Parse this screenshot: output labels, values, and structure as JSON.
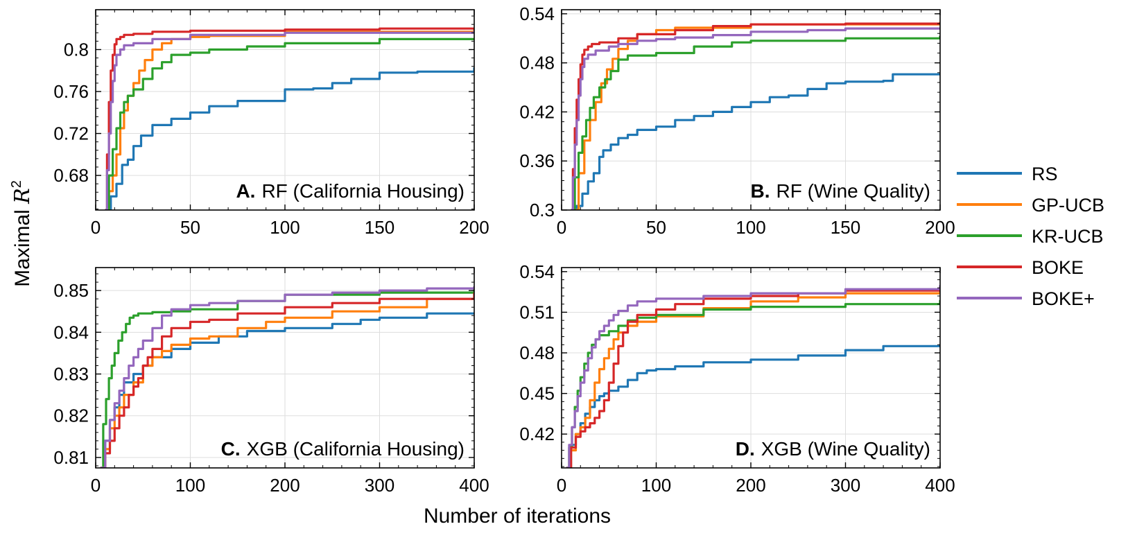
{
  "figure": {
    "ylabel_prefix": "Maximal ",
    "ylabel_var": "R",
    "ylabel_exp": "2",
    "xlabel": "Number of iterations"
  },
  "legend": [
    {
      "name": "RS",
      "color": "#1f77b4"
    },
    {
      "name": "GP-UCB",
      "color": "#ff7f0e"
    },
    {
      "name": "KR-UCB",
      "color": "#2ca02c"
    },
    {
      "name": "BOKE",
      "color": "#d62728"
    },
    {
      "name": "BOKE+",
      "color": "#9467bd"
    }
  ],
  "chart_data": [
    {
      "type": "line",
      "panel": "A",
      "letter": "A.",
      "title": "RF (California Housing)",
      "xlim": [
        0,
        200
      ],
      "ylim": [
        0.647,
        0.838
      ],
      "xticks": [
        0,
        50,
        100,
        150,
        200
      ],
      "xtick_labels": [
        "0",
        "50",
        "100",
        "150",
        "200"
      ],
      "yticks": [
        0.68,
        0.72,
        0.76,
        0.8
      ],
      "ytick_labels": [
        "0.68",
        "0.72",
        "0.76",
        "0.8"
      ],
      "grid": true,
      "series": [
        {
          "name": "RS",
          "color": "#1f77b4",
          "x": [
            5,
            8,
            11,
            14,
            17,
            20,
            24,
            30,
            40,
            50,
            60,
            75,
            100,
            115,
            125,
            135,
            150,
            170,
            200
          ],
          "y": [
            0.647,
            0.66,
            0.672,
            0.69,
            0.695,
            0.708,
            0.718,
            0.728,
            0.734,
            0.74,
            0.746,
            0.751,
            0.762,
            0.763,
            0.768,
            0.772,
            0.778,
            0.779,
            0.783
          ]
        },
        {
          "name": "GP-UCB",
          "color": "#ff7f0e",
          "x": [
            5,
            7,
            9,
            11,
            13,
            15,
            17,
            20,
            23,
            26,
            30,
            35,
            40,
            50,
            60,
            100,
            200
          ],
          "y": [
            0.647,
            0.665,
            0.68,
            0.7,
            0.725,
            0.742,
            0.756,
            0.768,
            0.78,
            0.79,
            0.8,
            0.806,
            0.81,
            0.812,
            0.813,
            0.817,
            0.821
          ]
        },
        {
          "name": "KR-UCB",
          "color": "#2ca02c",
          "x": [
            5,
            7,
            9,
            11,
            13,
            15,
            17,
            20,
            25,
            30,
            35,
            40,
            50,
            60,
            80,
            100,
            150,
            200
          ],
          "y": [
            0.647,
            0.68,
            0.705,
            0.725,
            0.74,
            0.75,
            0.756,
            0.762,
            0.772,
            0.782,
            0.788,
            0.795,
            0.797,
            0.8,
            0.803,
            0.806,
            0.81,
            0.811
          ]
        },
        {
          "name": "BOKE",
          "color": "#d62728",
          "x": [
            5,
            6,
            7,
            8,
            9,
            10,
            11,
            13,
            15,
            20,
            30,
            50,
            100,
            150,
            200
          ],
          "y": [
            0.647,
            0.7,
            0.75,
            0.78,
            0.795,
            0.805,
            0.81,
            0.812,
            0.814,
            0.815,
            0.817,
            0.818,
            0.819,
            0.82,
            0.82
          ]
        },
        {
          "name": "BOKE+",
          "color": "#9467bd",
          "x": [
            5,
            6,
            7,
            8,
            9,
            10,
            11,
            13,
            15,
            20,
            30,
            50,
            100,
            200
          ],
          "y": [
            0.647,
            0.685,
            0.72,
            0.75,
            0.77,
            0.785,
            0.795,
            0.8,
            0.804,
            0.806,
            0.81,
            0.814,
            0.816,
            0.818
          ]
        }
      ]
    },
    {
      "type": "line",
      "panel": "B",
      "letter": "B.",
      "title": "RF (Wine Quality)",
      "xlim": [
        0,
        200
      ],
      "ylim": [
        0.3,
        0.545
      ],
      "xticks": [
        0,
        50,
        100,
        150,
        200
      ],
      "xtick_labels": [
        "0",
        "50",
        "100",
        "150",
        "200"
      ],
      "yticks": [
        0.3,
        0.36,
        0.42,
        0.48,
        0.54
      ],
      "ytick_labels": [
        "0.3",
        "0.36",
        "0.42",
        "0.48",
        "0.54"
      ],
      "grid": true,
      "series": [
        {
          "name": "RS",
          "color": "#1f77b4",
          "x": [
            5,
            8,
            11,
            14,
            17,
            20,
            22,
            26,
            30,
            35,
            40,
            50,
            60,
            70,
            80,
            90,
            100,
            110,
            120,
            130,
            140,
            150,
            170,
            175,
            200
          ],
          "y": [
            0.3,
            0.305,
            0.32,
            0.335,
            0.345,
            0.365,
            0.373,
            0.38,
            0.388,
            0.392,
            0.398,
            0.402,
            0.41,
            0.415,
            0.42,
            0.426,
            0.432,
            0.438,
            0.44,
            0.448,
            0.455,
            0.457,
            0.458,
            0.466,
            0.466
          ]
        },
        {
          "name": "GP-UCB",
          "color": "#ff7f0e",
          "x": [
            6,
            9,
            12,
            15,
            18,
            21,
            24,
            27,
            30,
            35,
            40,
            50,
            60,
            100,
            200
          ],
          "y": [
            0.3,
            0.345,
            0.385,
            0.41,
            0.432,
            0.455,
            0.472,
            0.485,
            0.497,
            0.507,
            0.515,
            0.52,
            0.523,
            0.527,
            0.53
          ]
        },
        {
          "name": "KR-UCB",
          "color": "#2ca02c",
          "x": [
            5,
            7,
            9,
            11,
            13,
            15,
            17,
            20,
            23,
            26,
            30,
            35,
            50,
            70,
            90,
            100,
            150,
            200
          ],
          "y": [
            0.3,
            0.34,
            0.37,
            0.39,
            0.41,
            0.425,
            0.438,
            0.45,
            0.46,
            0.47,
            0.484,
            0.489,
            0.492,
            0.5,
            0.505,
            0.507,
            0.51,
            0.513
          ]
        },
        {
          "name": "BOKE",
          "color": "#d62728",
          "x": [
            5,
            6,
            7,
            8,
            9,
            10,
            11,
            12,
            14,
            16,
            20,
            30,
            40,
            60,
            80,
            100,
            150,
            200
          ],
          "y": [
            0.3,
            0.35,
            0.4,
            0.435,
            0.46,
            0.478,
            0.49,
            0.496,
            0.5,
            0.503,
            0.505,
            0.51,
            0.515,
            0.52,
            0.525,
            0.527,
            0.528,
            0.529
          ]
        },
        {
          "name": "BOKE+",
          "color": "#9467bd",
          "x": [
            5,
            6,
            7,
            8,
            9,
            10,
            11,
            12,
            14,
            18,
            25,
            30,
            40,
            50,
            60,
            80,
            100,
            130,
            150,
            200
          ],
          "y": [
            0.3,
            0.34,
            0.38,
            0.41,
            0.44,
            0.46,
            0.475,
            0.485,
            0.49,
            0.495,
            0.5,
            0.503,
            0.507,
            0.509,
            0.511,
            0.514,
            0.518,
            0.52,
            0.522,
            0.523
          ]
        }
      ]
    },
    {
      "type": "line",
      "panel": "C",
      "letter": "C.",
      "title": "XGB (California Housing)",
      "xlim": [
        0,
        400
      ],
      "ylim": [
        0.8075,
        0.8555
      ],
      "xticks": [
        0,
        100,
        200,
        300,
        400
      ],
      "xtick_labels": [
        "0",
        "100",
        "200",
        "300",
        "400"
      ],
      "yticks": [
        0.81,
        0.82,
        0.83,
        0.84,
        0.85
      ],
      "ytick_labels": [
        "0.81",
        "0.82",
        "0.83",
        "0.84",
        "0.85"
      ],
      "grid": true,
      "series": [
        {
          "name": "RS",
          "color": "#1f77b4",
          "x": [
            5,
            10,
            15,
            20,
            25,
            30,
            40,
            50,
            60,
            80,
            100,
            130,
            160,
            200,
            250,
            280,
            300,
            350,
            400
          ],
          "y": [
            0.8075,
            0.814,
            0.819,
            0.822,
            0.825,
            0.828,
            0.83,
            0.832,
            0.834,
            0.836,
            0.8375,
            0.839,
            0.8403,
            0.841,
            0.842,
            0.843,
            0.8435,
            0.8445,
            0.8445
          ]
        },
        {
          "name": "GP-UCB",
          "color": "#ff7f0e",
          "x": [
            5,
            10,
            15,
            20,
            25,
            30,
            40,
            50,
            60,
            70,
            80,
            100,
            120,
            150,
            180,
            200,
            250,
            300,
            350,
            400
          ],
          "y": [
            0.8075,
            0.812,
            0.817,
            0.82,
            0.822,
            0.825,
            0.828,
            0.832,
            0.834,
            0.8355,
            0.837,
            0.8385,
            0.839,
            0.841,
            0.8425,
            0.8435,
            0.845,
            0.846,
            0.848,
            0.8495
          ]
        },
        {
          "name": "KR-UCB",
          "color": "#2ca02c",
          "x": [
            5,
            8,
            11,
            14,
            17,
            20,
            24,
            28,
            32,
            36,
            40,
            45,
            50,
            60,
            80,
            100,
            150,
            200,
            300,
            400
          ],
          "y": [
            0.8075,
            0.818,
            0.824,
            0.829,
            0.832,
            0.835,
            0.838,
            0.84,
            0.842,
            0.8435,
            0.844,
            0.8445,
            0.8445,
            0.8448,
            0.845,
            0.8455,
            0.8475,
            0.849,
            0.8495,
            0.8505
          ]
        },
        {
          "name": "BOKE",
          "color": "#d62728",
          "x": [
            5,
            10,
            15,
            20,
            25,
            30,
            35,
            40,
            45,
            50,
            55,
            60,
            70,
            80,
            100,
            120,
            150,
            200,
            250,
            300,
            400
          ],
          "y": [
            0.8075,
            0.811,
            0.814,
            0.817,
            0.82,
            0.822,
            0.825,
            0.827,
            0.829,
            0.832,
            0.834,
            0.836,
            0.839,
            0.841,
            0.8425,
            0.843,
            0.8445,
            0.846,
            0.847,
            0.848,
            0.8495
          ]
        },
        {
          "name": "BOKE+",
          "color": "#9467bd",
          "x": [
            5,
            10,
            15,
            20,
            25,
            30,
            35,
            40,
            45,
            50,
            60,
            70,
            80,
            100,
            120,
            150,
            200,
            250,
            300,
            350,
            400
          ],
          "y": [
            0.8075,
            0.814,
            0.819,
            0.823,
            0.826,
            0.829,
            0.832,
            0.834,
            0.836,
            0.838,
            0.841,
            0.844,
            0.8455,
            0.8465,
            0.847,
            0.8475,
            0.849,
            0.8495,
            0.85,
            0.8505,
            0.851
          ]
        }
      ]
    },
    {
      "type": "line",
      "panel": "D",
      "letter": "D.",
      "title": "XGB (Wine Quality)",
      "xlim": [
        0,
        400
      ],
      "ylim": [
        0.395,
        0.543
      ],
      "xticks": [
        0,
        100,
        200,
        300,
        400
      ],
      "xtick_labels": [
        "0",
        "100",
        "200",
        "300",
        "400"
      ],
      "yticks": [
        0.42,
        0.45,
        0.48,
        0.51,
        0.54
      ],
      "ytick_labels": [
        "0.42",
        "0.45",
        "0.48",
        "0.51",
        "0.54"
      ],
      "grid": true,
      "series": [
        {
          "name": "RS",
          "color": "#1f77b4",
          "x": [
            5,
            10,
            15,
            20,
            25,
            30,
            35,
            40,
            45,
            50,
            60,
            70,
            80,
            90,
            100,
            120,
            150,
            200,
            250,
            300,
            340,
            400
          ],
          "y": [
            0.395,
            0.412,
            0.42,
            0.428,
            0.435,
            0.44,
            0.445,
            0.448,
            0.45,
            0.452,
            0.455,
            0.46,
            0.465,
            0.467,
            0.468,
            0.47,
            0.473,
            0.475,
            0.478,
            0.482,
            0.485,
            0.485
          ]
        },
        {
          "name": "GP-UCB",
          "color": "#ff7f0e",
          "x": [
            5,
            10,
            15,
            20,
            25,
            30,
            35,
            40,
            45,
            50,
            55,
            60,
            70,
            80,
            100,
            150,
            200,
            250,
            300,
            400
          ],
          "y": [
            0.395,
            0.408,
            0.42,
            0.425,
            0.432,
            0.445,
            0.458,
            0.468,
            0.476,
            0.483,
            0.49,
            0.495,
            0.5,
            0.503,
            0.507,
            0.513,
            0.518,
            0.521,
            0.524,
            0.528
          ]
        },
        {
          "name": "KR-UCB",
          "color": "#2ca02c",
          "x": [
            5,
            8,
            11,
            14,
            17,
            20,
            24,
            28,
            32,
            36,
            40,
            50,
            60,
            70,
            80,
            100,
            150,
            200,
            300,
            400
          ],
          "y": [
            0.395,
            0.41,
            0.425,
            0.44,
            0.452,
            0.462,
            0.472,
            0.48,
            0.486,
            0.49,
            0.493,
            0.496,
            0.5,
            0.504,
            0.506,
            0.508,
            0.512,
            0.514,
            0.516,
            0.519
          ]
        },
        {
          "name": "BOKE",
          "color": "#d62728",
          "x": [
            5,
            10,
            15,
            20,
            25,
            30,
            35,
            40,
            45,
            50,
            55,
            60,
            65,
            70,
            80,
            100,
            120,
            150,
            200,
            250,
            300,
            400
          ],
          "y": [
            0.395,
            0.41,
            0.418,
            0.422,
            0.425,
            0.428,
            0.432,
            0.437,
            0.445,
            0.458,
            0.472,
            0.485,
            0.495,
            0.503,
            0.508,
            0.512,
            0.516,
            0.52,
            0.522,
            0.524,
            0.526,
            0.528
          ]
        },
        {
          "name": "BOKE+",
          "color": "#9467bd",
          "x": [
            5,
            8,
            11,
            14,
            17,
            20,
            24,
            28,
            32,
            36,
            40,
            45,
            50,
            55,
            60,
            70,
            80,
            100,
            150,
            200,
            300,
            400
          ],
          "y": [
            0.395,
            0.412,
            0.425,
            0.437,
            0.448,
            0.458,
            0.467,
            0.476,
            0.484,
            0.49,
            0.496,
            0.5,
            0.504,
            0.508,
            0.511,
            0.515,
            0.518,
            0.52,
            0.522,
            0.524,
            0.527,
            0.53
          ]
        }
      ]
    }
  ]
}
